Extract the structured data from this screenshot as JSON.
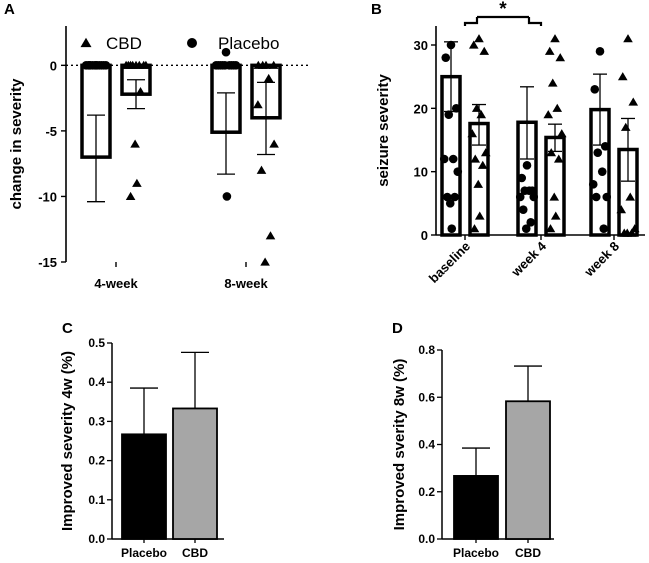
{
  "chart_data": [
    {
      "panel": "A",
      "type": "bar",
      "ylabel": "change in severity",
      "ylim": [
        -15,
        3
      ],
      "yticks": [
        0,
        -5,
        -10,
        -15
      ],
      "categories": [
        "4-week",
        "8-week"
      ],
      "legend": [
        {
          "name": "CBD",
          "marker": "triangle"
        },
        {
          "name": "Placebo",
          "marker": "circle"
        }
      ],
      "series": [
        {
          "name": "Placebo",
          "marker": "circle",
          "means": [
            -7.0,
            -5.1
          ],
          "errors": [
            [
              -10.4,
              -3.8
            ],
            [
              -8.3,
              -2.1
            ]
          ],
          "points": [
            [
              0,
              0,
              0,
              0,
              0,
              0,
              0,
              0,
              0,
              0,
              0,
              0
            ],
            [
              1,
              0,
              0,
              0,
              0,
              0,
              0,
              0,
              0,
              0,
              -10
            ]
          ]
        },
        {
          "name": "CBD",
          "marker": "triangle",
          "means": [
            -2.2,
            -4.0
          ],
          "errors": [
            [
              -3.3,
              -1.1
            ],
            [
              -6.8,
              -1.3
            ]
          ],
          "points": [
            [
              0,
              0,
              0,
              0,
              0,
              0,
              0,
              0,
              -2,
              -6,
              -9,
              -10
            ],
            [
              0,
              0,
              0,
              0,
              -1,
              -3,
              -6,
              -8,
              -13,
              -15
            ]
          ]
        }
      ],
      "reference_line": 0
    },
    {
      "panel": "B",
      "type": "bar",
      "ylabel": "seizure severity",
      "ylim": [
        0,
        33
      ],
      "yticks": [
        0,
        10,
        20,
        30
      ],
      "categories": [
        "baseline",
        "week 4",
        "week 8"
      ],
      "series": [
        {
          "name": "Placebo",
          "marker": "circle",
          "means": [
            25.0,
            17.8,
            19.8
          ],
          "errors": [
            [
              19.5,
              30.5
            ],
            [
              12.0,
              23.4
            ],
            [
              14.2,
              25.4
            ]
          ],
          "points": [
            [
              30,
              28,
              20,
              19,
              12,
              12,
              10,
              6,
              6,
              5,
              1
            ],
            [
              11,
              9,
              7,
              7,
              7,
              6,
              6,
              4,
              2,
              1
            ],
            [
              29,
              23,
              14,
              13,
              10,
              8,
              6,
              6,
              1
            ]
          ]
        },
        {
          "name": "CBD",
          "marker": "triangle",
          "means": [
            17.6,
            15.4,
            13.5
          ],
          "errors": [
            [
              14.2,
              20.6
            ],
            [
              13.2,
              17.5
            ],
            [
              8.5,
              18.4
            ]
          ],
          "points": [
            [
              31,
              30,
              29,
              20,
              19,
              16,
              13,
              12,
              11,
              8,
              3,
              1
            ],
            [
              31,
              29,
              28,
              24,
              20,
              19,
              16,
              13,
              12,
              6,
              3,
              1
            ],
            [
              31,
              25,
              21,
              17,
              6,
              4,
              1,
              0.3,
              0.3,
              0.3
            ]
          ]
        }
      ],
      "annotations": [
        {
          "text": "*",
          "between": [
            "baseline",
            "week 4"
          ]
        }
      ]
    },
    {
      "panel": "C",
      "type": "bar",
      "ylabel": "Improved severity 4w (%)",
      "ylim": [
        0,
        0.5
      ],
      "yticks": [
        0.0,
        0.1,
        0.2,
        0.3,
        0.4,
        0.5
      ],
      "categories": [
        "Placebo",
        "CBD"
      ],
      "values": [
        0.267,
        0.333
      ],
      "errors": [
        0.118,
        0.143
      ],
      "colors": [
        "#000000",
        "#a6a6a6"
      ]
    },
    {
      "panel": "D",
      "type": "bar",
      "ylabel": "Improved sverity 8w (%)",
      "ylim": [
        0,
        0.8
      ],
      "yticks": [
        0.0,
        0.2,
        0.4,
        0.6,
        0.8
      ],
      "categories": [
        "Placebo",
        "CBD"
      ],
      "values": [
        0.267,
        0.583
      ],
      "errors": [
        0.118,
        0.149
      ],
      "colors": [
        "#000000",
        "#a6a6a6"
      ]
    }
  ]
}
